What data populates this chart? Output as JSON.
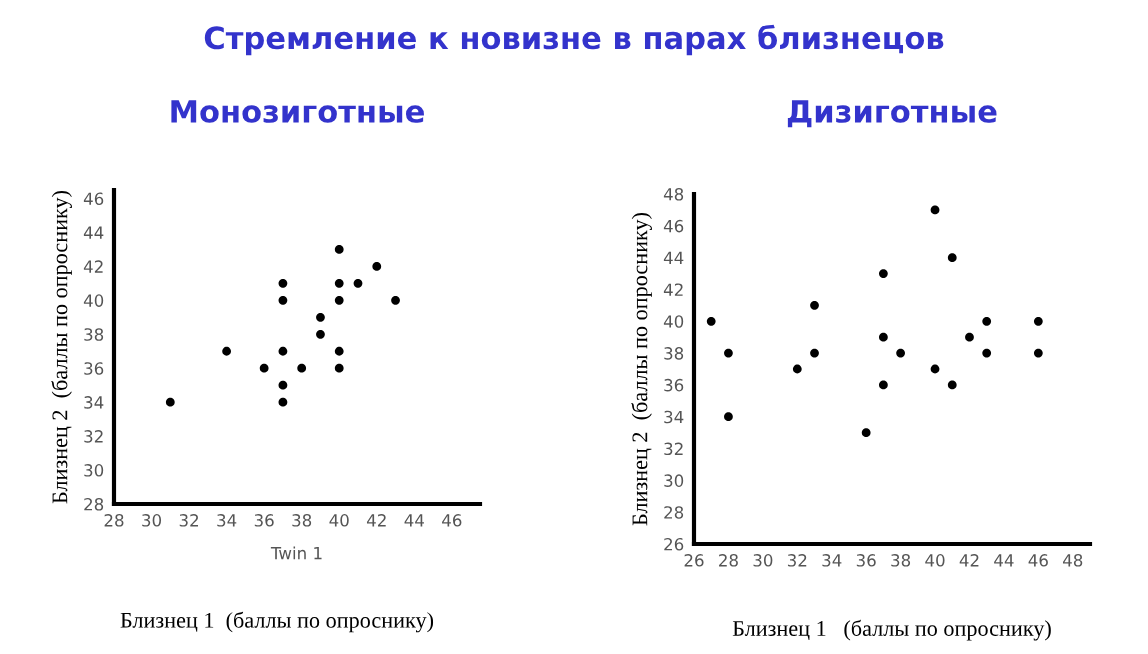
{
  "chart_data": [
    {
      "type": "scatter",
      "title": "Монозиготные",
      "xlabel": "Twin 1",
      "ylabel": "Близнец 2  (баллы по опроснику)",
      "annotations": [
        "Стремление к новизне в парах близнецов",
        "Близнец 1  (баллы по опроснику)"
      ],
      "x": [
        31,
        34,
        36,
        37,
        37,
        37,
        37,
        37,
        38,
        39,
        39,
        40,
        40,
        40,
        40,
        40,
        41,
        42,
        43
      ],
      "values": [
        34,
        37,
        36,
        41,
        40,
        37,
        35,
        34,
        36,
        39,
        38,
        43,
        41,
        40,
        37,
        36,
        41,
        42,
        40
      ],
      "color": "#000000",
      "marker": "circle",
      "grid": false,
      "xlim": [
        28,
        47.5
      ],
      "ylim": [
        28,
        46.5
      ],
      "xticks": [
        28,
        30,
        32,
        34,
        36,
        38,
        40,
        42,
        44,
        46
      ],
      "yticks": [
        28,
        30,
        32,
        34,
        36,
        38,
        40,
        42,
        44,
        46
      ]
    },
    {
      "type": "scatter",
      "title": "Дизиготные",
      "xlabel": "Близнец 1   (баллы по опроснику)",
      "ylabel": "Близнец 2  (баллы по опроснику)",
      "x": [
        27,
        28,
        28,
        32,
        33,
        33,
        36,
        37,
        37,
        37,
        38,
        40,
        40,
        41,
        41,
        42,
        43,
        43,
        46,
        46
      ],
      "values": [
        40,
        38,
        34,
        37,
        41,
        38,
        33,
        43,
        39,
        36,
        38,
        47,
        37,
        44,
        36,
        39,
        40,
        38,
        40,
        38
      ],
      "color": "#000000",
      "marker": "circle",
      "grid": false,
      "xlim": [
        26,
        49
      ],
      "ylim": [
        26,
        48
      ],
      "xticks": [
        26,
        28,
        30,
        32,
        34,
        36,
        38,
        40,
        42,
        44,
        46,
        48
      ],
      "yticks": [
        26,
        28,
        30,
        32,
        34,
        36,
        38,
        40,
        42,
        44,
        46,
        48
      ]
    }
  ]
}
